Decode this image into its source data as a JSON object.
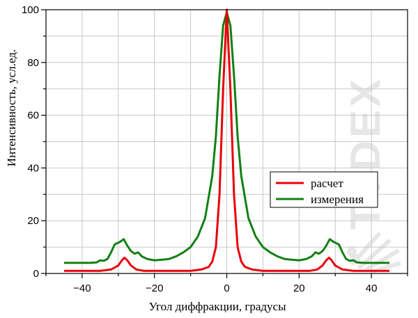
{
  "colors": {
    "raschet": "#e8000b",
    "izmerenie": "#118011",
    "grid": "#c8c8c8",
    "watermark": "#e6e6e6"
  },
  "watermark": {
    "text": "TYDEX"
  },
  "chart_data": {
    "type": "line",
    "title": "",
    "xlabel": "Угол диффракции, градусы",
    "ylabel": "Интенсивность, усл.ед.",
    "xlim": [
      -50,
      50
    ],
    "ylim": [
      0,
      100
    ],
    "xticks": [
      -40,
      -20,
      0,
      20,
      40
    ],
    "yticks": [
      0,
      20,
      40,
      60,
      80,
      100
    ],
    "x_minor_step": 10,
    "y_minor_step": 10,
    "grid": true,
    "legend": "right-center",
    "series": [
      {
        "name": "расчет",
        "color": "#e8000b",
        "points": [
          [
            -45,
            1
          ],
          [
            -35,
            1
          ],
          [
            -32,
            1.5
          ],
          [
            -30,
            3
          ],
          [
            -29,
            5
          ],
          [
            -28.3,
            6
          ],
          [
            -27.5,
            5
          ],
          [
            -26.5,
            3
          ],
          [
            -25,
            1.5
          ],
          [
            -23,
            1
          ],
          [
            -10,
            1
          ],
          [
            -7,
            1.5
          ],
          [
            -5,
            2.5
          ],
          [
            -4,
            4.5
          ],
          [
            -3,
            10
          ],
          [
            -2,
            30
          ],
          [
            -1,
            70
          ],
          [
            0,
            100
          ],
          [
            1,
            70
          ],
          [
            2,
            30
          ],
          [
            3,
            10
          ],
          [
            4,
            4.5
          ],
          [
            5,
            2.5
          ],
          [
            7,
            1.5
          ],
          [
            10,
            1
          ],
          [
            23,
            1
          ],
          [
            25,
            1.5
          ],
          [
            26.5,
            3
          ],
          [
            27.5,
            5
          ],
          [
            28.3,
            6
          ],
          [
            29,
            5
          ],
          [
            30,
            3
          ],
          [
            32,
            1.5
          ],
          [
            35,
            1
          ],
          [
            45,
            1
          ]
        ]
      },
      {
        "name": "измерения",
        "color": "#118011",
        "points": [
          [
            -45,
            4
          ],
          [
            -38,
            4
          ],
          [
            -36,
            4.2
          ],
          [
            -35,
            5
          ],
          [
            -34,
            4.8
          ],
          [
            -33,
            5.5
          ],
          [
            -32,
            8
          ],
          [
            -31,
            11
          ],
          [
            -29.5,
            12
          ],
          [
            -28.5,
            13
          ],
          [
            -27.5,
            10.5
          ],
          [
            -26.5,
            8.5
          ],
          [
            -25.5,
            7.5
          ],
          [
            -24.5,
            8
          ],
          [
            -23.5,
            6.5
          ],
          [
            -22,
            5.5
          ],
          [
            -20,
            5
          ],
          [
            -18,
            5.2
          ],
          [
            -16,
            5.5
          ],
          [
            -14,
            6.5
          ],
          [
            -12,
            8
          ],
          [
            -10,
            10
          ],
          [
            -8,
            14
          ],
          [
            -6,
            21
          ],
          [
            -4,
            37
          ],
          [
            -3,
            52
          ],
          [
            -2,
            75
          ],
          [
            -1,
            94
          ],
          [
            0,
            99
          ],
          [
            1,
            94
          ],
          [
            2,
            75
          ],
          [
            3,
            52
          ],
          [
            4,
            37
          ],
          [
            6,
            21
          ],
          [
            8,
            14
          ],
          [
            10,
            10
          ],
          [
            12,
            8
          ],
          [
            14,
            6.5
          ],
          [
            16,
            5.5
          ],
          [
            18,
            5.2
          ],
          [
            20,
            5
          ],
          [
            22,
            5.5
          ],
          [
            23.5,
            6.5
          ],
          [
            24.5,
            8
          ],
          [
            25.5,
            7.5
          ],
          [
            26.5,
            8.5
          ],
          [
            27.5,
            10.5
          ],
          [
            28.5,
            13
          ],
          [
            29.5,
            12
          ],
          [
            31,
            11
          ],
          [
            32,
            8
          ],
          [
            33,
            5.5
          ],
          [
            34,
            4.8
          ],
          [
            35,
            5
          ],
          [
            36,
            4.2
          ],
          [
            38,
            4
          ],
          [
            45,
            4
          ]
        ]
      }
    ]
  }
}
